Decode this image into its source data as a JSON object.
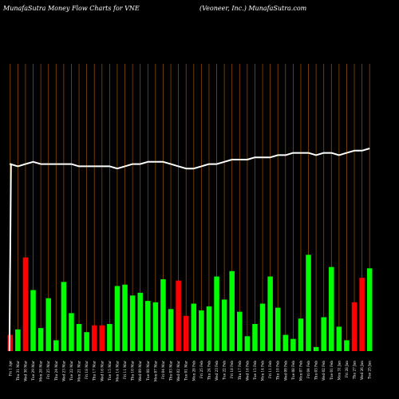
{
  "header": {
    "title_left": "MunafaSutra  Money Flow  Charts for VNE",
    "title_right": "(Veoneer,  Inc.) MunafaSutra.com"
  },
  "colors": {
    "background": "#000000",
    "grid": "#8a4b00",
    "up": "#00ff00",
    "down": "#ff0000",
    "line": "#ffffff"
  },
  "chart_data": {
    "type": "bar",
    "categories": [
      "Fri 1 Apr 2022",
      "Thu 31 Mar 2022",
      "Wed 30 Mar 2022",
      "Tue 29 Mar 2022",
      "Mon 28 Mar 2022",
      "Fri 25 Mar 2022",
      "Thu 24 Mar 2022",
      "Wed 23 Mar 2022",
      "Tue 22 Mar 2022",
      "Mon 21 Mar 2022",
      "Fri 18 Mar 2022",
      "Thu 17 Mar 2022",
      "Wed 16 Mar 2022",
      "Tue 15 Mar 2022",
      "Mon 14 Mar 2022",
      "Fri 11 Mar 2022",
      "Thu 10 Mar 2022",
      "Wed 09 Mar 2022",
      "Tue 08 Mar 2022",
      "Mon 07 Mar 2022",
      "Fri 04 Mar 2022",
      "Thu 03 Mar 2022",
      "Wed 02 Mar 2022",
      "Tue 01 Mar 2022",
      "Mon 28 Feb 2022",
      "Fri 25 Feb 2022",
      "Thu 24 Feb 2022",
      "Wed 23 Feb 2022",
      "Tue 22 Feb 2022",
      "Fri 18 Feb 2022",
      "Thu 17 Feb 2022",
      "Wed 16 Feb 2022",
      "Tue 15 Feb 2022",
      "Mon 14 Feb 2022",
      "Fri 11 Feb 2022",
      "Thu 10 Feb 2022",
      "Wed 09 Feb 2022",
      "Tue 08 Feb 2022",
      "Mon 07 Feb 2022",
      "Fri 04 Feb 2022",
      "Thu 03 Feb 2022",
      "Wed 02 Feb 2022",
      "Tue 01 Feb 2022",
      "Mon 31 Jan 2022",
      "Fri 28 Jan 2022",
      "Thu 27 Jan 2022",
      "Wed 26 Jan 2022",
      "Tue 25 Jan 2022"
    ],
    "tick_labels": [
      "Fri 1 Apr",
      "Thu 31 Mar",
      "Wed 30 Mar",
      "Tue 29 Mar",
      "Mon 28 Mar",
      "Fri 25 Mar",
      "Thu 24 Mar",
      "Wed 23 Mar",
      "Tue 22 Mar",
      "Mon 21 Mar",
      "Fri 18 Mar",
      "Thu 17 Mar",
      "Wed 16 Mar",
      "Tue 15 Mar",
      "Mon 14 Mar",
      "Fri 11 Mar",
      "Thu 10 Mar",
      "Wed 09 Mar",
      "Tue 08 Mar",
      "Mon 07 Mar",
      "Fri 04 Mar",
      "Thu 03 Mar",
      "Wed 02 Mar",
      "Tue 01 Mar",
      "Mon 28 Feb",
      "Fri 25 Feb",
      "Thu 24 Feb",
      "Wed 23 Feb",
      "Tue 22 Feb",
      "Fri 18 Feb",
      "Thu 17 Feb",
      "Wed 16 Feb",
      "Tue 15 Feb",
      "Mon 14 Feb",
      "Fri 11 Feb",
      "Thu 10 Feb",
      "Wed 09 Feb",
      "Tue 08 Feb",
      "Mon 07 Feb",
      "Fri 04 Feb",
      "Thu 03 Feb",
      "Wed 02 Feb",
      "Tue 01 Feb",
      "Mon 31 Jan",
      "Fri 28 Jan",
      "Thu 27 Jan",
      "Wed 26 Jan",
      "Tue 25 Jan"
    ],
    "series": [
      {
        "type": "bar",
        "values": [
          12,
          16,
          69,
          45,
          17,
          39,
          8,
          51,
          28,
          20,
          14,
          19,
          19,
          20,
          48,
          49,
          41,
          43,
          37,
          36,
          53,
          31,
          52,
          26,
          35,
          30,
          33,
          55,
          38,
          59,
          29,
          11,
          20,
          35,
          55,
          32,
          12,
          9,
          24,
          71,
          3,
          25,
          62,
          18,
          8,
          36,
          54,
          61
        ],
        "direction": [
          "down",
          "up",
          "down",
          "up",
          "up",
          "up",
          "up",
          "up",
          "up",
          "up",
          "up",
          "down",
          "down",
          "up",
          "up",
          "up",
          "up",
          "up",
          "up",
          "up",
          "up",
          "up",
          "down",
          "down",
          "up",
          "up",
          "up",
          "up",
          "up",
          "up",
          "up",
          "up",
          "up",
          "up",
          "up",
          "up",
          "up",
          "up",
          "up",
          "up",
          "up",
          "up",
          "up",
          "up",
          "up",
          "down",
          "down",
          "up"
        ]
      },
      {
        "type": "line",
        "values": [
          93,
          92,
          93,
          94,
          93,
          93,
          93,
          93,
          93,
          92,
          92,
          92,
          92,
          92,
          91,
          92,
          93,
          93,
          94,
          94,
          94,
          93,
          92,
          91,
          91,
          92,
          93,
          93,
          94,
          95,
          95,
          95,
          96,
          96,
          96,
          97,
          97,
          98,
          98,
          98,
          97,
          98,
          98,
          97,
          98,
          99,
          99,
          100
        ]
      }
    ],
    "ylim": [
      0,
      100
    ]
  }
}
